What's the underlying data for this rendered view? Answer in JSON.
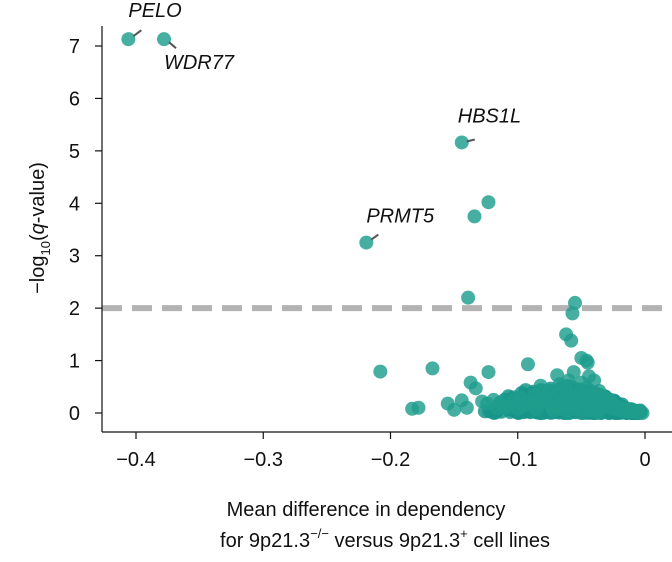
{
  "chart_data": {
    "type": "scatter",
    "title": "",
    "xlabel_line1": "Mean difference in dependency",
    "xlabel_line2_parts": [
      "for 9p21.3",
      "−/−",
      " versus 9p21.3",
      "+",
      " cell lines"
    ],
    "ylabel_parts": [
      "−log",
      "10",
      "(",
      "q",
      "-value)"
    ],
    "xlim": [
      -0.42,
      0.0
    ],
    "ylim": [
      -0.35,
      7.5
    ],
    "xticks": [
      -0.4,
      -0.3,
      -0.2,
      -0.1,
      0
    ],
    "xtick_labels": [
      "−0.4",
      "−0.3",
      "−0.2",
      "−0.1",
      "0"
    ],
    "yticks": [
      0,
      1,
      2,
      3,
      4,
      5,
      6,
      7
    ],
    "ytick_labels": [
      "0",
      "1",
      "2",
      "3",
      "4",
      "5",
      "6",
      "7"
    ],
    "threshold_y": 2.0,
    "threshold_style": "dashed grey line",
    "point_color": "#1f9e8e",
    "threshold_color": "#b3b3b3",
    "labeled_points": [
      {
        "gene": "PELO",
        "x": -0.406,
        "y": 7.13
      },
      {
        "gene": "WDR77",
        "x": -0.378,
        "y": 7.13
      },
      {
        "gene": "HBS1L",
        "x": -0.144,
        "y": 5.16
      },
      {
        "gene": "PRMT5",
        "x": -0.219,
        "y": 3.25
      }
    ],
    "other_points": [
      {
        "x": -0.123,
        "y": 4.02
      },
      {
        "x": -0.134,
        "y": 3.75
      },
      {
        "x": -0.139,
        "y": 2.2
      },
      {
        "x": -0.055,
        "y": 2.1
      },
      {
        "x": -0.057,
        "y": 1.9
      },
      {
        "x": -0.062,
        "y": 1.5
      },
      {
        "x": -0.058,
        "y": 1.38
      },
      {
        "x": -0.05,
        "y": 1.05
      },
      {
        "x": -0.046,
        "y": 1.0
      },
      {
        "x": -0.045,
        "y": 0.96
      },
      {
        "x": -0.092,
        "y": 0.93
      },
      {
        "x": -0.167,
        "y": 0.85
      },
      {
        "x": -0.208,
        "y": 0.79
      },
      {
        "x": -0.123,
        "y": 0.78
      },
      {
        "x": -0.069,
        "y": 0.72
      },
      {
        "x": -0.044,
        "y": 0.7
      },
      {
        "x": -0.137,
        "y": 0.58
      },
      {
        "x": -0.133,
        "y": 0.47
      },
      {
        "x": -0.082,
        "y": 0.52
      },
      {
        "x": -0.144,
        "y": 0.24
      },
      {
        "x": -0.155,
        "y": 0.18
      },
      {
        "x": -0.178,
        "y": 0.1
      },
      {
        "x": -0.183,
        "y": 0.08
      },
      {
        "x": -0.14,
        "y": 0.1
      },
      {
        "x": -0.15,
        "y": 0.06
      },
      {
        "x": -0.128,
        "y": 0.22
      },
      {
        "x": -0.124,
        "y": 0.18
      },
      {
        "x": -0.119,
        "y": 0.25
      },
      {
        "x": -0.114,
        "y": 0.2
      },
      {
        "x": -0.108,
        "y": 0.16
      },
      {
        "x": -0.103,
        "y": 0.24
      },
      {
        "x": -0.098,
        "y": 0.3
      },
      {
        "x": -0.095,
        "y": 0.14
      },
      {
        "x": -0.09,
        "y": 0.22
      },
      {
        "x": -0.087,
        "y": 0.35
      },
      {
        "x": -0.083,
        "y": 0.18
      },
      {
        "x": -0.079,
        "y": 0.28
      },
      {
        "x": -0.076,
        "y": 0.42
      },
      {
        "x": -0.073,
        "y": 0.12
      },
      {
        "x": -0.07,
        "y": 0.33
      },
      {
        "x": -0.067,
        "y": 0.55
      },
      {
        "x": -0.065,
        "y": 0.2
      },
      {
        "x": -0.062,
        "y": 0.45
      },
      {
        "x": -0.06,
        "y": 0.62
      },
      {
        "x": -0.058,
        "y": 0.3
      },
      {
        "x": -0.056,
        "y": 0.78
      },
      {
        "x": -0.054,
        "y": 0.15
      },
      {
        "x": -0.052,
        "y": 0.4
      },
      {
        "x": -0.05,
        "y": 0.58
      },
      {
        "x": -0.048,
        "y": 0.25
      },
      {
        "x": -0.046,
        "y": 0.48
      },
      {
        "x": -0.044,
        "y": 0.12
      },
      {
        "x": -0.042,
        "y": 0.36
      },
      {
        "x": -0.04,
        "y": 0.62
      },
      {
        "x": -0.038,
        "y": 0.22
      },
      {
        "x": -0.036,
        "y": 0.42
      },
      {
        "x": -0.034,
        "y": 0.1
      },
      {
        "x": -0.032,
        "y": 0.3
      },
      {
        "x": -0.03,
        "y": 0.18
      },
      {
        "x": -0.028,
        "y": 0.26
      },
      {
        "x": -0.026,
        "y": 0.08
      },
      {
        "x": -0.024,
        "y": 0.16
      },
      {
        "x": -0.022,
        "y": 0.06
      },
      {
        "x": -0.02,
        "y": 0.12
      },
      {
        "x": -0.018,
        "y": 0.04
      },
      {
        "x": -0.016,
        "y": 0.09
      },
      {
        "x": -0.014,
        "y": 0.03
      },
      {
        "x": -0.012,
        "y": 0.06
      },
      {
        "x": -0.01,
        "y": 0.02
      },
      {
        "x": -0.008,
        "y": 0.04
      },
      {
        "x": -0.006,
        "y": 0.01
      },
      {
        "x": -0.004,
        "y": 0.02
      },
      {
        "x": -0.002,
        "y": 0.0
      },
      {
        "x": -0.072,
        "y": 0.05
      },
      {
        "x": -0.066,
        "y": 0.08
      },
      {
        "x": -0.061,
        "y": 0.03
      },
      {
        "x": -0.055,
        "y": 0.07
      },
      {
        "x": -0.049,
        "y": 0.02
      },
      {
        "x": -0.043,
        "y": 0.05
      },
      {
        "x": -0.037,
        "y": 0.01
      },
      {
        "x": -0.085,
        "y": 0.06
      },
      {
        "x": -0.1,
        "y": 0.08
      },
      {
        "x": -0.11,
        "y": 0.1
      },
      {
        "x": -0.116,
        "y": 0.09
      }
    ],
    "dense_cluster": {
      "description_free": true,
      "x_range": [
        -0.13,
        -0.003
      ],
      "y_max": 0.55,
      "count": 420
    }
  }
}
